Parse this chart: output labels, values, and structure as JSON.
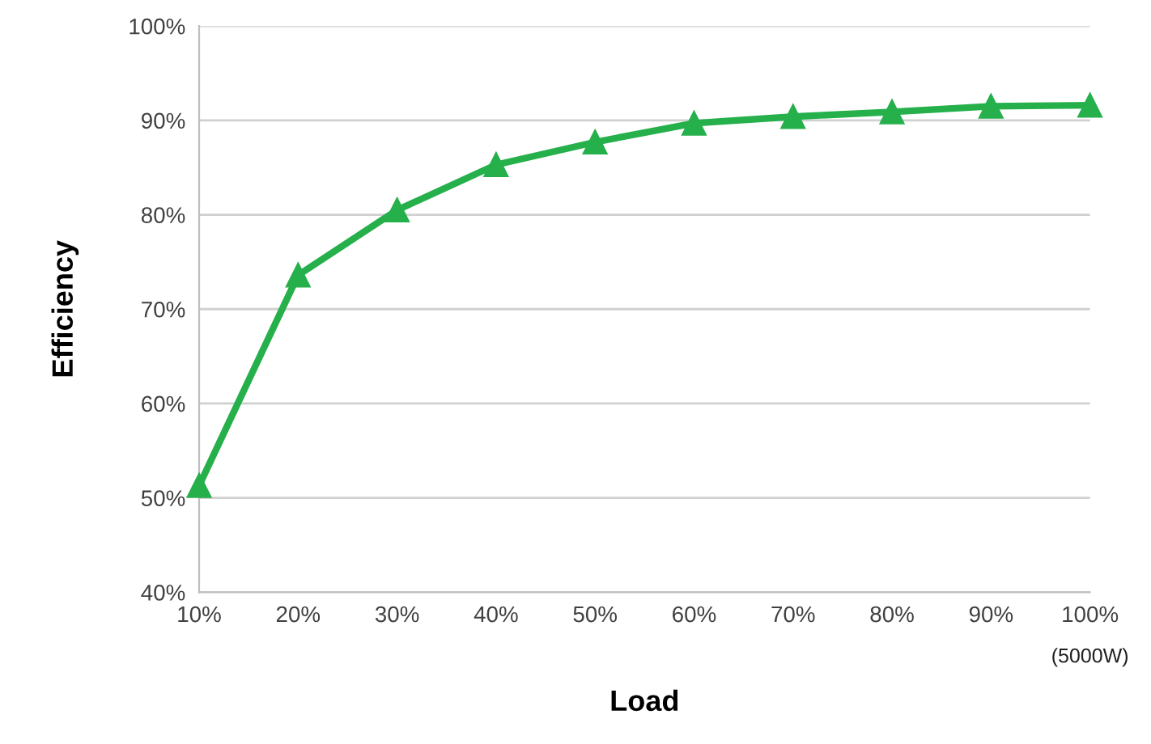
{
  "chart_data": {
    "type": "line",
    "xlabel": "Load",
    "ylabel": "Efficiency",
    "x": [
      10,
      20,
      30,
      40,
      50,
      60,
      70,
      80,
      90,
      100
    ],
    "series": [
      {
        "color": "#25b04b",
        "values": [
          51.3,
          73.6,
          80.5,
          85.3,
          87.7,
          89.7,
          90.4,
          90.9,
          91.5,
          91.6
        ]
      }
    ],
    "xlim": [
      10,
      100
    ],
    "xticks": [
      {
        "value": 10,
        "label": "10%"
      },
      {
        "value": 20,
        "label": "20%"
      },
      {
        "value": 30,
        "label": "30%"
      },
      {
        "value": 40,
        "label": "40%"
      },
      {
        "value": 50,
        "label": "50%"
      },
      {
        "value": 60,
        "label": "60%"
      },
      {
        "value": 70,
        "label": "70%"
      },
      {
        "value": 80,
        "label": "80%"
      },
      {
        "value": 90,
        "label": "90%"
      },
      {
        "value": 100,
        "label": "100%"
      }
    ],
    "ylim": [
      40,
      100
    ],
    "yticks": [
      {
        "value": 40,
        "label": "40%"
      },
      {
        "value": 50,
        "label": "50%"
      },
      {
        "value": 60,
        "label": "60%"
      },
      {
        "value": 70,
        "label": "70%"
      },
      {
        "value": 80,
        "label": "80%"
      },
      {
        "value": 90,
        "label": "90%"
      },
      {
        "value": 100,
        "label": "100%"
      }
    ],
    "grid": "y",
    "marker": "triangle",
    "line_style": "solid",
    "annotations": [
      "(5000W)"
    ]
  }
}
